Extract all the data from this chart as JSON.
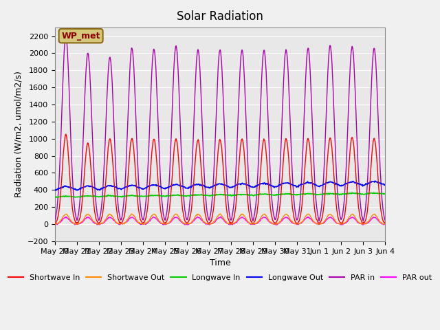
{
  "title": "Solar Radiation",
  "ylabel": "Radiation (W/m2, umol/m2/s)",
  "xlabel": "Time",
  "ylim": [
    -200,
    2300
  ],
  "yticks": [
    -200,
    0,
    200,
    400,
    600,
    800,
    1000,
    1200,
    1400,
    1600,
    1800,
    2000,
    2200
  ],
  "x_tick_labels": [
    "May 20",
    "May 21",
    "May 22",
    "May 23",
    "May 24",
    "May 25",
    "May 26",
    "May 27",
    "May 28",
    "May 29",
    "May 30",
    "May 31",
    "Jun 1",
    "Jun 2",
    "Jun 3",
    "Jun 4"
  ],
  "background_color": "#e8e8e8",
  "grid_color": "#ffffff",
  "annotation_text": "WP_met",
  "annotation_bg": "#d4c97a",
  "annotation_border": "#8B6914",
  "colors": {
    "shortwave_in": "#ff0000",
    "shortwave_out": "#ff8800",
    "longwave_in": "#00cc00",
    "longwave_out": "#0000ff",
    "par_in": "#aa00aa",
    "par_out": "#ff00ff"
  },
  "legend_labels": [
    "Shortwave In",
    "Shortwave Out",
    "Longwave In",
    "Longwave Out",
    "PAR in",
    "PAR out"
  ],
  "n_days": 15,
  "points_per_day": 48
}
